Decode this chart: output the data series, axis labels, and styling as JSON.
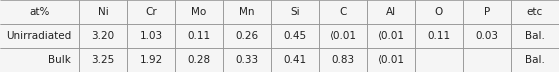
{
  "columns": [
    "at%",
    "Ni",
    "Cr",
    "Mo",
    "Mn",
    "Si",
    "C",
    "Al",
    "O",
    "P",
    "etc"
  ],
  "rows": [
    [
      "Unirradiated",
      "3.20",
      "1.03",
      "0.11",
      "0.26",
      "0.45",
      "⟨0.01",
      "⟨0.01",
      "0.11",
      "0.03",
      "Bal."
    ],
    [
      "Bulk",
      "3.25",
      "1.92",
      "0.28",
      "0.33",
      "0.41",
      "0.83",
      "⟨0.01",
      "",
      "",
      "Bal."
    ]
  ],
  "bg_color": "#f5f5f5",
  "header_bg": "#f5f5f5",
  "text_color": "#222222",
  "figsize": [
    5.59,
    0.72
  ],
  "dpi": 100
}
